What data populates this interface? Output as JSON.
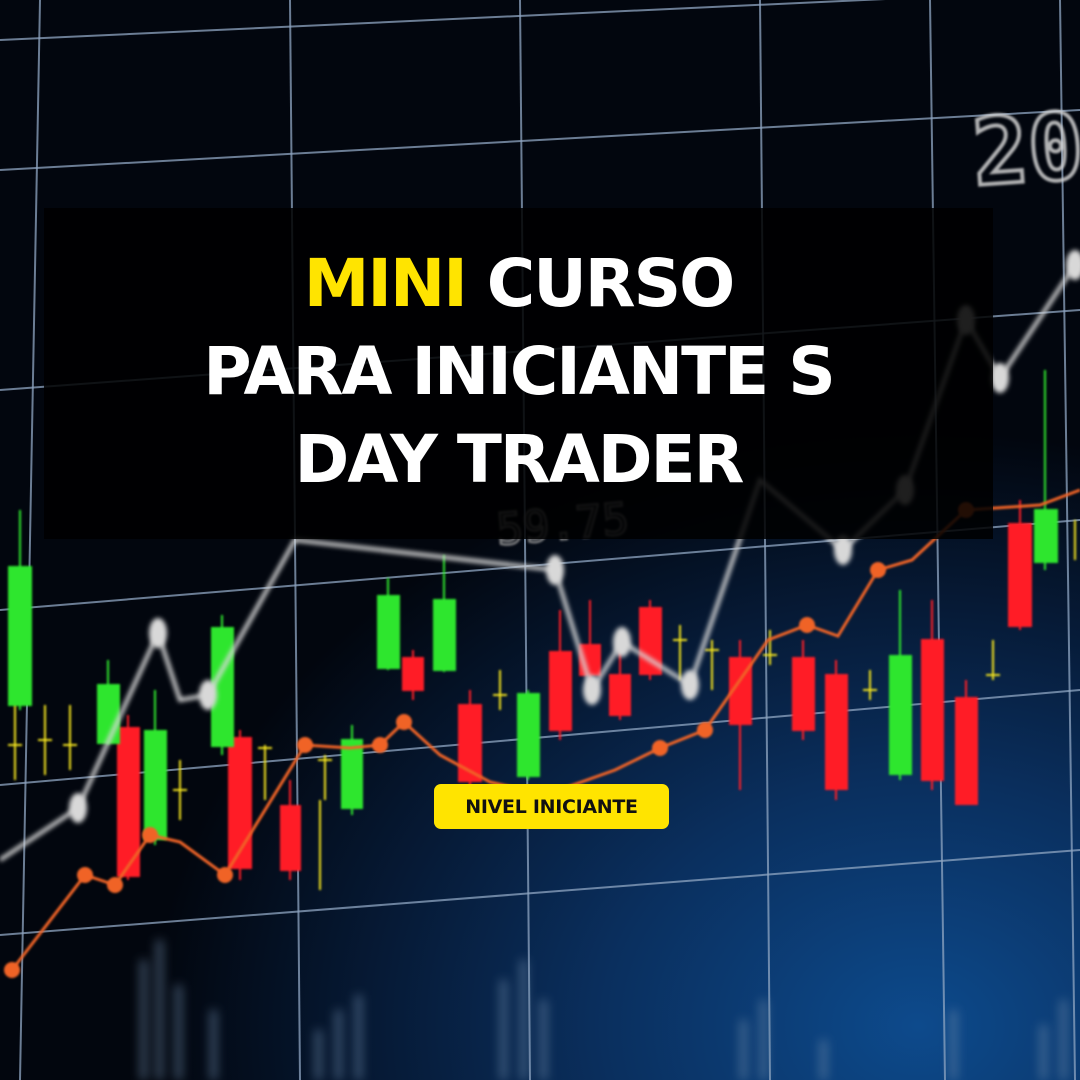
{
  "title": {
    "line1_highlight": "MINI",
    "line1_rest": " CURSO",
    "line2": "PARA INICIANTE S",
    "line3": "DAY TRADER"
  },
  "badge": {
    "label": "NIVEL INICIANTE"
  },
  "background_numbers": {
    "top_right": "20",
    "middle": "59.75"
  },
  "colors": {
    "accent_yellow": "#ffe400",
    "candle_green": "#2ee62e",
    "candle_red": "#ff1e28",
    "line_orange": "#f06428",
    "line_white": "#d8d8d8",
    "background_blue": "#0a2f5e"
  }
}
